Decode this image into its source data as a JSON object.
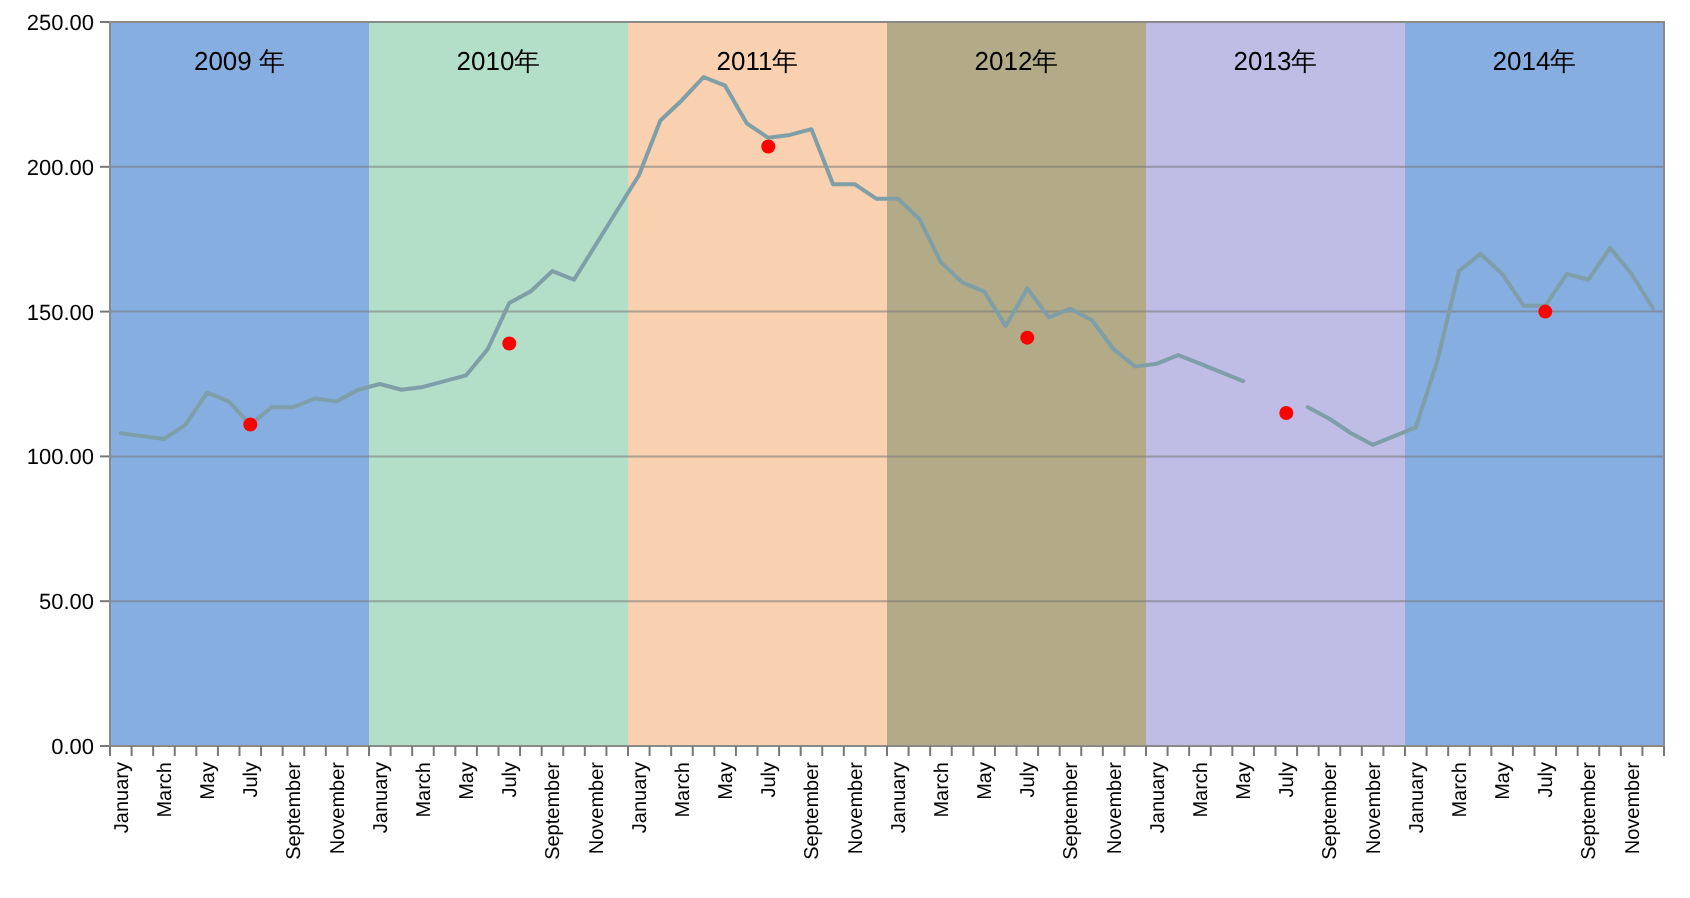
{
  "chart_data": {
    "type": "line",
    "categories": [
      "January",
      null,
      "March",
      null,
      "May",
      null,
      "July",
      null,
      "September",
      null,
      "November",
      null,
      "January",
      null,
      "March",
      null,
      "May",
      null,
      "July",
      null,
      "September",
      null,
      "November",
      null,
      "January",
      null,
      "March",
      null,
      "May",
      null,
      "July",
      null,
      "September",
      null,
      "November",
      null,
      "January",
      null,
      "March",
      null,
      "May",
      null,
      "July",
      null,
      "September",
      null,
      "November",
      null,
      "January",
      null,
      "March",
      null,
      "May",
      null,
      "July",
      null,
      "September",
      null,
      "November",
      null,
      "January",
      null,
      "March",
      null,
      "May",
      null,
      "July",
      null,
      "September",
      null,
      "November",
      null
    ],
    "series": [
      {
        "color": "#7f9fa8",
        "values": [
          108,
          107,
          106,
          111,
          122,
          119,
          111,
          117,
          117,
          120,
          119,
          123,
          125,
          123,
          124,
          126,
          128,
          137,
          153,
          157,
          164,
          161,
          173,
          185,
          197,
          216,
          223,
          231,
          228,
          215,
          210,
          211,
          213,
          194,
          194,
          189,
          189,
          182,
          167,
          160,
          157,
          145,
          158,
          148,
          151,
          147,
          137,
          131,
          132,
          135,
          132,
          129,
          126,
          null,
          null,
          117,
          113,
          108,
          104,
          107,
          110,
          133,
          164,
          170,
          163,
          152,
          152,
          163,
          161,
          172,
          163,
          151
        ]
      },
      {
        "type": "scatter",
        "color": "#ff0000",
        "values": [
          null,
          null,
          null,
          null,
          null,
          null,
          111,
          null,
          null,
          null,
          null,
          null,
          null,
          null,
          null,
          null,
          null,
          null,
          139,
          null,
          null,
          null,
          null,
          null,
          null,
          null,
          null,
          null,
          null,
          null,
          207,
          null,
          null,
          null,
          null,
          null,
          null,
          null,
          null,
          null,
          null,
          null,
          141,
          null,
          null,
          null,
          null,
          null,
          null,
          null,
          null,
          null,
          null,
          null,
          115,
          null,
          null,
          null,
          null,
          null,
          null,
          null,
          null,
          null,
          null,
          null,
          150,
          null,
          null,
          null,
          null,
          null
        ]
      }
    ],
    "annotations": [
      "2009 年",
      "2010年",
      "2011年",
      "2012年",
      "2013年",
      "2014年"
    ],
    "ylim": [
      0,
      250
    ],
    "yticks": [
      {
        "value": 0,
        "label": "0.00"
      },
      {
        "value": 50,
        "label": "50.00"
      },
      {
        "value": 100,
        "label": "100.00"
      },
      {
        "value": 150,
        "label": "150.00"
      },
      {
        "value": 200,
        "label": "200.00"
      },
      {
        "value": 250,
        "label": "250.00"
      }
    ],
    "grid": "y"
  }
}
